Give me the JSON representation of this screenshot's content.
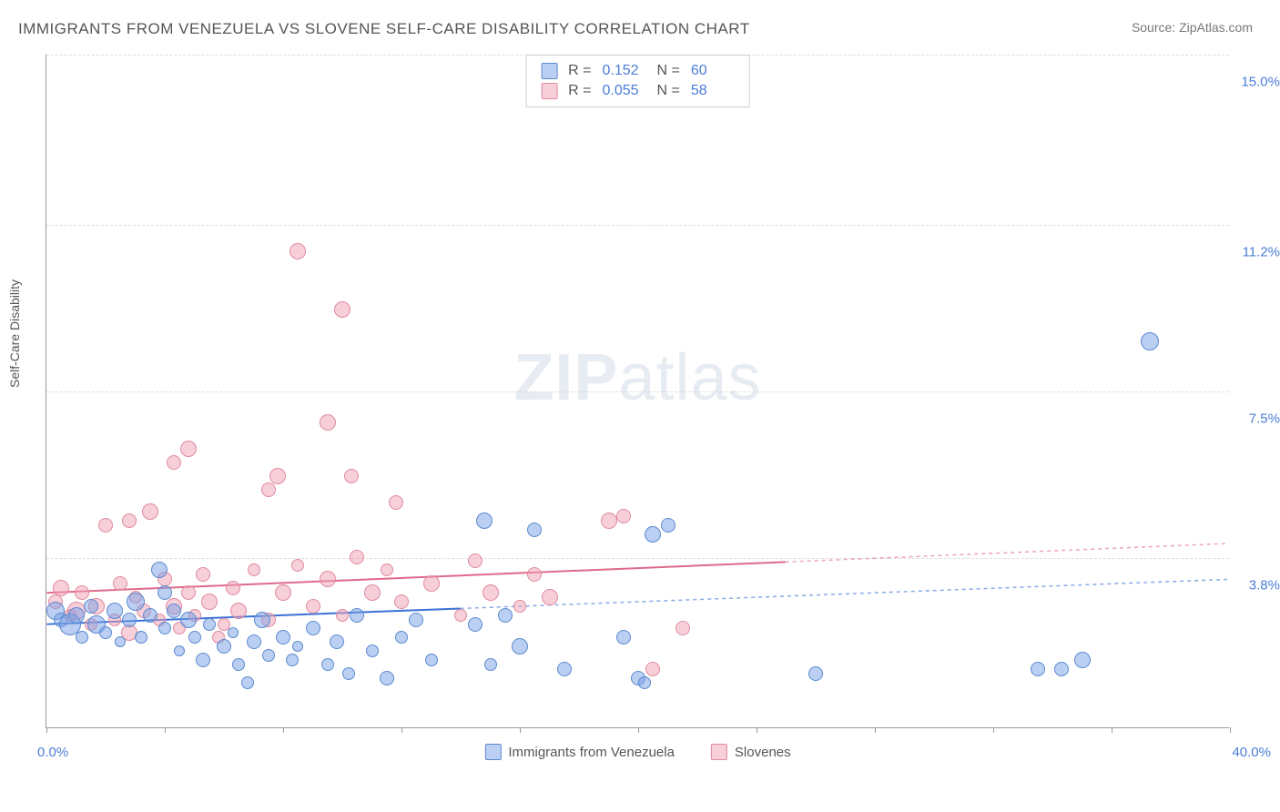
{
  "title": "IMMIGRANTS FROM VENEZUELA VS SLOVENE SELF-CARE DISABILITY CORRELATION CHART",
  "source_label": "Source: ",
  "source_name": "ZipAtlas.com",
  "y_axis_label": "Self-Care Disability",
  "watermark_zip": "ZIP",
  "watermark_atlas": "atlas",
  "chart": {
    "type": "scatter",
    "xlim": [
      0,
      40
    ],
    "ylim": [
      0,
      15
    ],
    "x_label_min": "0.0%",
    "x_label_max": "40.0%",
    "y_ticks": [
      3.8,
      7.5,
      11.2,
      15.0
    ],
    "y_tick_labels": [
      "3.8%",
      "7.5%",
      "11.2%",
      "15.0%"
    ],
    "x_tick_positions": [
      0,
      4,
      8,
      12,
      16,
      20,
      24,
      28,
      32,
      36,
      40
    ],
    "background_color": "#ffffff",
    "grid_color": "#dddddd",
    "axis_color": "#999999",
    "marker_radius_range": [
      6,
      14
    ],
    "series": [
      {
        "name": "Immigrants from Venezuela",
        "color_fill": "rgba(120,160,230,0.5)",
        "color_stroke": "#5a8ad0",
        "stats": {
          "R": "0.152",
          "N": "60"
        },
        "trend": {
          "x1": 0,
          "y1": 2.3,
          "x2": 40,
          "y2": 3.3,
          "dash_after_x": 14,
          "stroke": "#3a72d6",
          "stroke_width": 2
        },
        "points": [
          {
            "x": 0.3,
            "y": 2.6,
            "r": 10
          },
          {
            "x": 0.5,
            "y": 2.4,
            "r": 8
          },
          {
            "x": 0.8,
            "y": 2.3,
            "r": 12
          },
          {
            "x": 1.0,
            "y": 2.5,
            "r": 9
          },
          {
            "x": 1.2,
            "y": 2.0,
            "r": 7
          },
          {
            "x": 1.5,
            "y": 2.7,
            "r": 8
          },
          {
            "x": 1.7,
            "y": 2.3,
            "r": 10
          },
          {
            "x": 2.0,
            "y": 2.1,
            "r": 7
          },
          {
            "x": 2.3,
            "y": 2.6,
            "r": 9
          },
          {
            "x": 2.5,
            "y": 1.9,
            "r": 6
          },
          {
            "x": 2.8,
            "y": 2.4,
            "r": 8
          },
          {
            "x": 3.0,
            "y": 2.8,
            "r": 10
          },
          {
            "x": 3.2,
            "y": 2.0,
            "r": 7
          },
          {
            "x": 3.5,
            "y": 2.5,
            "r": 8
          },
          {
            "x": 3.8,
            "y": 3.5,
            "r": 9
          },
          {
            "x": 4.0,
            "y": 2.2,
            "r": 7
          },
          {
            "x": 4.3,
            "y": 2.6,
            "r": 8
          },
          {
            "x": 4.5,
            "y": 1.7,
            "r": 6
          },
          {
            "x": 4.8,
            "y": 2.4,
            "r": 9
          },
          {
            "x": 5.0,
            "y": 2.0,
            "r": 7
          },
          {
            "x": 5.3,
            "y": 1.5,
            "r": 8
          },
          {
            "x": 5.5,
            "y": 2.3,
            "r": 7
          },
          {
            "x": 6.0,
            "y": 1.8,
            "r": 8
          },
          {
            "x": 6.3,
            "y": 2.1,
            "r": 6
          },
          {
            "x": 6.5,
            "y": 1.4,
            "r": 7
          },
          {
            "x": 7.0,
            "y": 1.9,
            "r": 8
          },
          {
            "x": 7.3,
            "y": 2.4,
            "r": 9
          },
          {
            "x": 7.5,
            "y": 1.6,
            "r": 7
          },
          {
            "x": 8.0,
            "y": 2.0,
            "r": 8
          },
          {
            "x": 8.3,
            "y": 1.5,
            "r": 7
          },
          {
            "x": 8.5,
            "y": 1.8,
            "r": 6
          },
          {
            "x": 9.0,
            "y": 2.2,
            "r": 8
          },
          {
            "x": 9.5,
            "y": 1.4,
            "r": 7
          },
          {
            "x": 9.8,
            "y": 1.9,
            "r": 8
          },
          {
            "x": 10.2,
            "y": 1.2,
            "r": 7
          },
          {
            "x": 10.5,
            "y": 2.5,
            "r": 8
          },
          {
            "x": 11.0,
            "y": 1.7,
            "r": 7
          },
          {
            "x": 11.5,
            "y": 1.1,
            "r": 8
          },
          {
            "x": 12.0,
            "y": 2.0,
            "r": 7
          },
          {
            "x": 12.5,
            "y": 2.4,
            "r": 8
          },
          {
            "x": 13.0,
            "y": 1.5,
            "r": 7
          },
          {
            "x": 14.5,
            "y": 2.3,
            "r": 8
          },
          {
            "x": 14.8,
            "y": 4.6,
            "r": 9
          },
          {
            "x": 15.0,
            "y": 1.4,
            "r": 7
          },
          {
            "x": 15.5,
            "y": 2.5,
            "r": 8
          },
          {
            "x": 16.0,
            "y": 1.8,
            "r": 9
          },
          {
            "x": 16.5,
            "y": 4.4,
            "r": 8
          },
          {
            "x": 17.5,
            "y": 1.3,
            "r": 8
          },
          {
            "x": 19.5,
            "y": 2.0,
            "r": 8
          },
          {
            "x": 20.0,
            "y": 1.1,
            "r": 8
          },
          {
            "x": 20.2,
            "y": 1.0,
            "r": 7
          },
          {
            "x": 20.5,
            "y": 4.3,
            "r": 9
          },
          {
            "x": 21.0,
            "y": 4.5,
            "r": 8
          },
          {
            "x": 26.0,
            "y": 1.2,
            "r": 8
          },
          {
            "x": 33.5,
            "y": 1.3,
            "r": 8
          },
          {
            "x": 34.3,
            "y": 1.3,
            "r": 8
          },
          {
            "x": 35.0,
            "y": 1.5,
            "r": 9
          },
          {
            "x": 37.3,
            "y": 8.6,
            "r": 10
          },
          {
            "x": 6.8,
            "y": 1.0,
            "r": 7
          },
          {
            "x": 4.0,
            "y": 3.0,
            "r": 8
          }
        ]
      },
      {
        "name": "Slovenes",
        "color_fill": "rgba(240,160,180,0.5)",
        "color_stroke": "#e08aa0",
        "stats": {
          "R": "0.055",
          "N": "58"
        },
        "trend": {
          "x1": 0,
          "y1": 3.0,
          "x2": 40,
          "y2": 4.1,
          "dash_after_x": 25,
          "stroke": "#e06a8a",
          "stroke_width": 2
        },
        "points": [
          {
            "x": 0.3,
            "y": 2.8,
            "r": 8
          },
          {
            "x": 0.5,
            "y": 3.1,
            "r": 9
          },
          {
            "x": 0.8,
            "y": 2.5,
            "r": 7
          },
          {
            "x": 1.0,
            "y": 2.6,
            "r": 10
          },
          {
            "x": 1.2,
            "y": 3.0,
            "r": 8
          },
          {
            "x": 1.5,
            "y": 2.3,
            "r": 7
          },
          {
            "x": 1.7,
            "y": 2.7,
            "r": 9
          },
          {
            "x": 2.0,
            "y": 4.5,
            "r": 8
          },
          {
            "x": 2.3,
            "y": 2.4,
            "r": 7
          },
          {
            "x": 2.5,
            "y": 3.2,
            "r": 8
          },
          {
            "x": 2.8,
            "y": 2.1,
            "r": 9
          },
          {
            "x": 2.8,
            "y": 4.6,
            "r": 8
          },
          {
            "x": 3.0,
            "y": 2.9,
            "r": 7
          },
          {
            "x": 3.3,
            "y": 2.6,
            "r": 8
          },
          {
            "x": 3.5,
            "y": 4.8,
            "r": 9
          },
          {
            "x": 3.8,
            "y": 2.4,
            "r": 7
          },
          {
            "x": 4.0,
            "y": 3.3,
            "r": 8
          },
          {
            "x": 4.3,
            "y": 2.7,
            "r": 9
          },
          {
            "x": 4.3,
            "y": 5.9,
            "r": 8
          },
          {
            "x": 4.5,
            "y": 2.2,
            "r": 7
          },
          {
            "x": 4.8,
            "y": 3.0,
            "r": 8
          },
          {
            "x": 4.8,
            "y": 6.2,
            "r": 9
          },
          {
            "x": 5.0,
            "y": 2.5,
            "r": 7
          },
          {
            "x": 5.3,
            "y": 3.4,
            "r": 8
          },
          {
            "x": 5.5,
            "y": 2.8,
            "r": 9
          },
          {
            "x": 6.0,
            "y": 2.3,
            "r": 7
          },
          {
            "x": 6.3,
            "y": 3.1,
            "r": 8
          },
          {
            "x": 6.5,
            "y": 2.6,
            "r": 9
          },
          {
            "x": 7.0,
            "y": 3.5,
            "r": 7
          },
          {
            "x": 7.5,
            "y": 2.4,
            "r": 8
          },
          {
            "x": 7.5,
            "y": 5.3,
            "r": 8
          },
          {
            "x": 7.8,
            "y": 5.6,
            "r": 9
          },
          {
            "x": 8.0,
            "y": 3.0,
            "r": 9
          },
          {
            "x": 8.5,
            "y": 3.6,
            "r": 7
          },
          {
            "x": 8.5,
            "y": 10.6,
            "r": 9
          },
          {
            "x": 9.0,
            "y": 2.7,
            "r": 8
          },
          {
            "x": 9.5,
            "y": 3.3,
            "r": 9
          },
          {
            "x": 9.5,
            "y": 6.8,
            "r": 9
          },
          {
            "x": 10.0,
            "y": 2.5,
            "r": 7
          },
          {
            "x": 10.0,
            "y": 9.3,
            "r": 9
          },
          {
            "x": 10.3,
            "y": 5.6,
            "r": 8
          },
          {
            "x": 10.5,
            "y": 3.8,
            "r": 8
          },
          {
            "x": 11.0,
            "y": 3.0,
            "r": 9
          },
          {
            "x": 11.5,
            "y": 3.5,
            "r": 7
          },
          {
            "x": 11.8,
            "y": 5.0,
            "r": 8
          },
          {
            "x": 12.0,
            "y": 2.8,
            "r": 8
          },
          {
            "x": 13.0,
            "y": 3.2,
            "r": 9
          },
          {
            "x": 14.0,
            "y": 2.5,
            "r": 7
          },
          {
            "x": 14.5,
            "y": 3.7,
            "r": 8
          },
          {
            "x": 15.0,
            "y": 3.0,
            "r": 9
          },
          {
            "x": 16.0,
            "y": 2.7,
            "r": 7
          },
          {
            "x": 16.5,
            "y": 3.4,
            "r": 8
          },
          {
            "x": 17.0,
            "y": 2.9,
            "r": 9
          },
          {
            "x": 19.0,
            "y": 4.6,
            "r": 9
          },
          {
            "x": 19.5,
            "y": 4.7,
            "r": 8
          },
          {
            "x": 20.5,
            "y": 1.3,
            "r": 8
          },
          {
            "x": 21.5,
            "y": 2.2,
            "r": 8
          },
          {
            "x": 5.8,
            "y": 2.0,
            "r": 7
          }
        ]
      }
    ],
    "legend": {
      "items": [
        {
          "label": "Immigrants from Venezuela",
          "swatch": "blue"
        },
        {
          "label": "Slovenes",
          "swatch": "pink"
        }
      ]
    },
    "stats_labels": {
      "R": "R =",
      "N": "N ="
    }
  }
}
